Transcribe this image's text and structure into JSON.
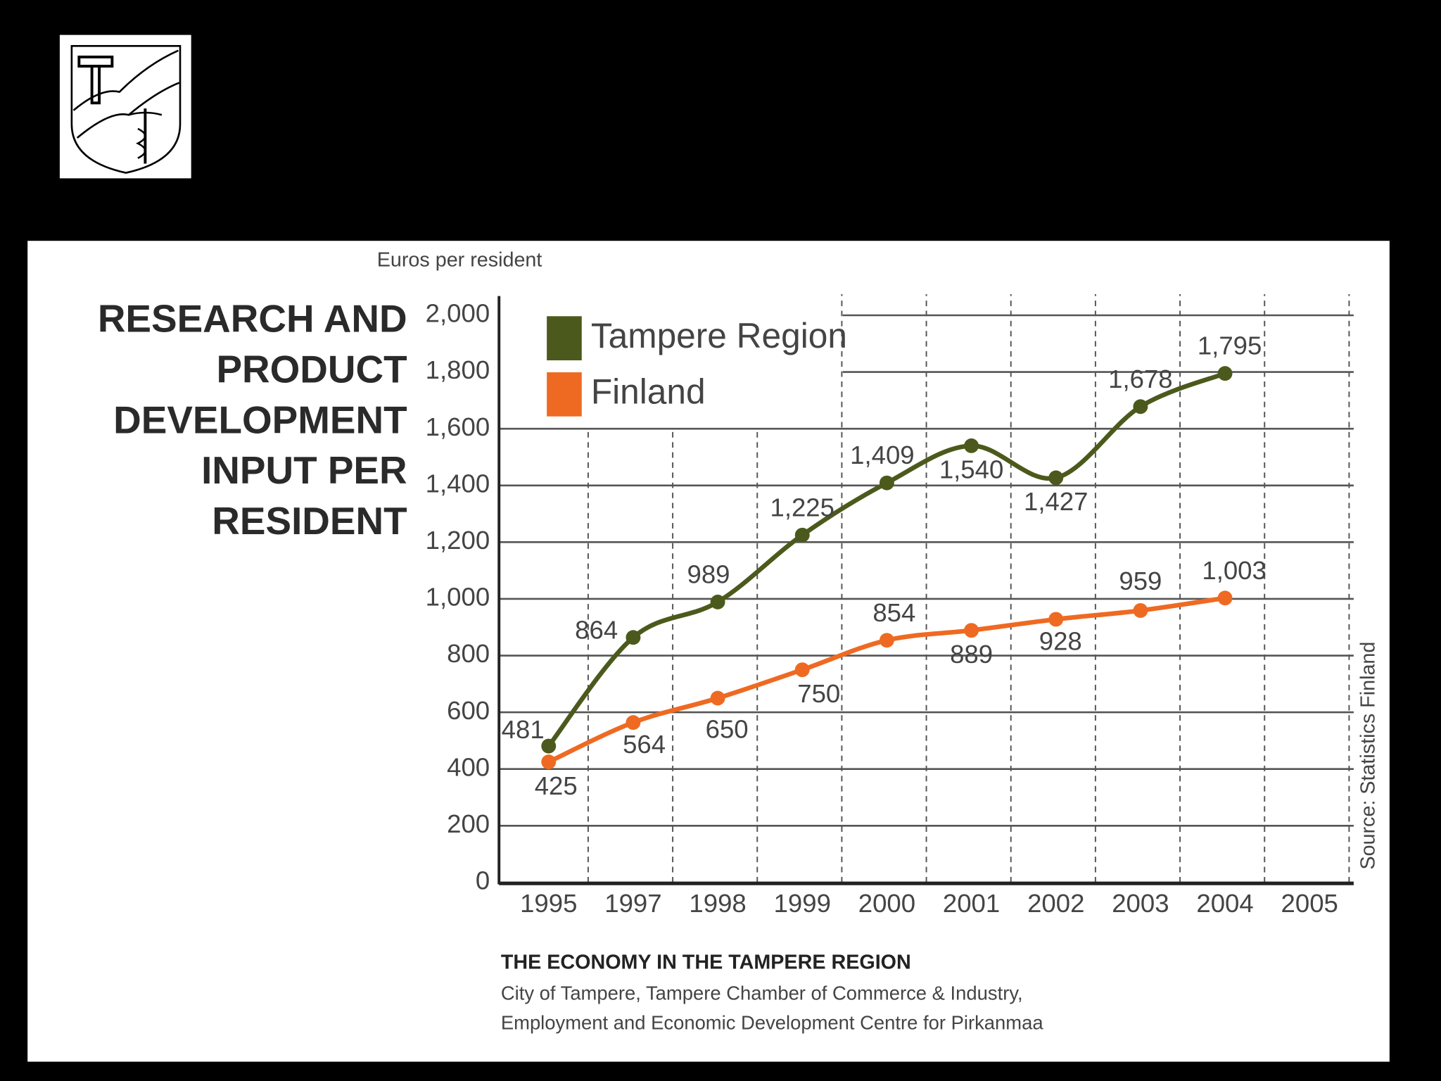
{
  "chart_data": {
    "type": "line",
    "title_lines": [
      "RESEARCH AND",
      "PRODUCT",
      "DEVELOPMENT",
      "INPUT PER",
      "RESIDENT"
    ],
    "y_label": "Euros per resident",
    "source": "Source: Statistics Finland",
    "categories": [
      "1995",
      "1997",
      "1998",
      "1999",
      "2000",
      "2001",
      "2002",
      "2003",
      "2004",
      "2005"
    ],
    "series": [
      {
        "name": "Tampere Region",
        "color": "#4b5a1c",
        "values": [
          481,
          864,
          989,
          1225,
          1409,
          1540,
          1427,
          1678,
          1795,
          null
        ],
        "value_labels": [
          "481",
          "864",
          "989",
          "1,225",
          "1,409",
          "1,540",
          "1,427",
          "1,678",
          "1,795",
          null
        ]
      },
      {
        "name": "Finland",
        "color": "#ee6a22",
        "values": [
          425,
          564,
          650,
          750,
          854,
          889,
          928,
          959,
          1003,
          null
        ],
        "value_labels": [
          "425",
          "564",
          "650",
          "750",
          "854",
          "889",
          "928",
          "959",
          "1,003",
          null
        ]
      }
    ],
    "ylim": [
      0,
      2000
    ],
    "yticks": [
      0,
      200,
      400,
      600,
      800,
      {
        "value": 1000,
        "label": "1,000"
      },
      {
        "value": 1200,
        "label": "1,200"
      },
      {
        "value": 1400,
        "label": "1,400"
      },
      {
        "value": 1600,
        "label": "1,600"
      },
      {
        "value": 1800,
        "label": "1,800"
      },
      {
        "value": 2000,
        "label": "2,000"
      }
    ],
    "grid": true
  },
  "footer": {
    "title": "THE ECONOMY IN THE TAMPERE REGION",
    "lines": [
      "City of Tampere, Tampere Chamber of Commerce & Industry,",
      "Employment and Economic Development Centre for Pirkanmaa"
    ]
  }
}
